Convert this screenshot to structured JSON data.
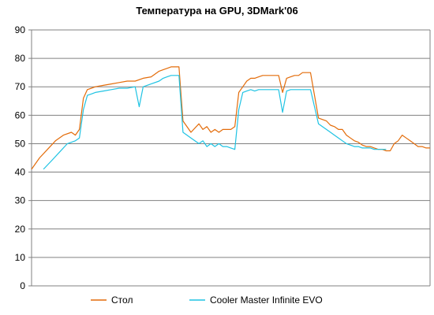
{
  "chart_data": {
    "type": "line",
    "title": "Температура на GPU, 3DMark'06",
    "xlabel": "",
    "ylabel": "",
    "ylim": [
      0,
      90
    ],
    "ytick_step": 10,
    "y_ticks": [
      "0",
      "10",
      "20",
      "30",
      "40",
      "50",
      "60",
      "70",
      "80",
      "90"
    ],
    "grid": "horizontal",
    "legend_position": "bottom",
    "x_range": [
      0,
      100
    ],
    "series": [
      {
        "name": "Стол",
        "color": "#e36c0a",
        "x": [
          0,
          2,
          4,
          6,
          8,
          10,
          11,
          12,
          13,
          14,
          15,
          16,
          18,
          20,
          22,
          24,
          26,
          28,
          30,
          32,
          33,
          34,
          35,
          36,
          37,
          38,
          40,
          42,
          43,
          44,
          45,
          46,
          47,
          48,
          49,
          50,
          51,
          52,
          53,
          54,
          55,
          56,
          57,
          58,
          60,
          62,
          63,
          64,
          65,
          66,
          67,
          68,
          69,
          70,
          72,
          74,
          75,
          76,
          77,
          78,
          79,
          80,
          81,
          82,
          83,
          84,
          85,
          86,
          87,
          88,
          89,
          90,
          91,
          92,
          93,
          94,
          95,
          96,
          97,
          98,
          99,
          100
        ],
        "values": [
          41,
          45,
          48,
          51,
          53,
          54,
          53,
          55,
          66,
          69,
          69.5,
          70,
          70.5,
          71,
          71.5,
          72,
          72,
          73,
          73.5,
          75.5,
          76,
          76.5,
          77,
          77,
          77,
          58,
          54,
          57,
          55,
          56,
          54,
          55,
          54,
          55,
          55,
          55,
          56,
          68,
          70,
          72,
          73,
          73,
          73.5,
          74,
          74,
          74,
          68,
          73,
          73.5,
          74,
          74,
          75,
          75,
          75,
          59,
          58,
          56.5,
          56,
          55,
          55,
          53,
          52,
          51,
          50.5,
          49.5,
          49,
          49,
          48.5,
          48,
          48,
          47.5,
          47.5,
          50,
          51,
          53,
          52,
          51,
          50,
          49,
          49,
          48.5,
          48.5
        ]
      },
      {
        "name": "Cooler Master Infinite EVO",
        "color": "#1fc3e3",
        "x": [
          3,
          5,
          7,
          9,
          11,
          12,
          13,
          14,
          15,
          16,
          18,
          20,
          22,
          24,
          26,
          27,
          28,
          30,
          32,
          33,
          34,
          35,
          36,
          37,
          38,
          40,
          42,
          43,
          44,
          45,
          46,
          47,
          48,
          49,
          50,
          51,
          52,
          53,
          54,
          55,
          56,
          57,
          58,
          60,
          62,
          63,
          64,
          65,
          66,
          67,
          68,
          69,
          70,
          72,
          74,
          75,
          76,
          77,
          78,
          79,
          80,
          81,
          82,
          83,
          84,
          85,
          86,
          87,
          88,
          89
        ],
        "values": [
          41,
          44,
          47,
          50,
          51,
          52,
          62,
          67,
          67.5,
          68,
          68.5,
          69,
          69.5,
          69.5,
          70,
          63,
          70,
          71,
          72,
          73,
          73.5,
          74,
          74,
          74,
          54,
          52,
          50,
          51,
          49,
          50,
          49,
          50,
          49,
          49,
          48.5,
          48,
          62,
          68,
          68.5,
          69,
          68.5,
          69,
          69,
          69,
          69,
          61,
          68.5,
          69,
          69,
          69,
          69,
          69,
          69,
          57,
          55,
          54,
          53,
          52,
          51,
          50,
          49.5,
          49,
          49,
          48.5,
          48.5,
          48.5,
          48,
          48,
          48,
          48
        ]
      }
    ]
  }
}
